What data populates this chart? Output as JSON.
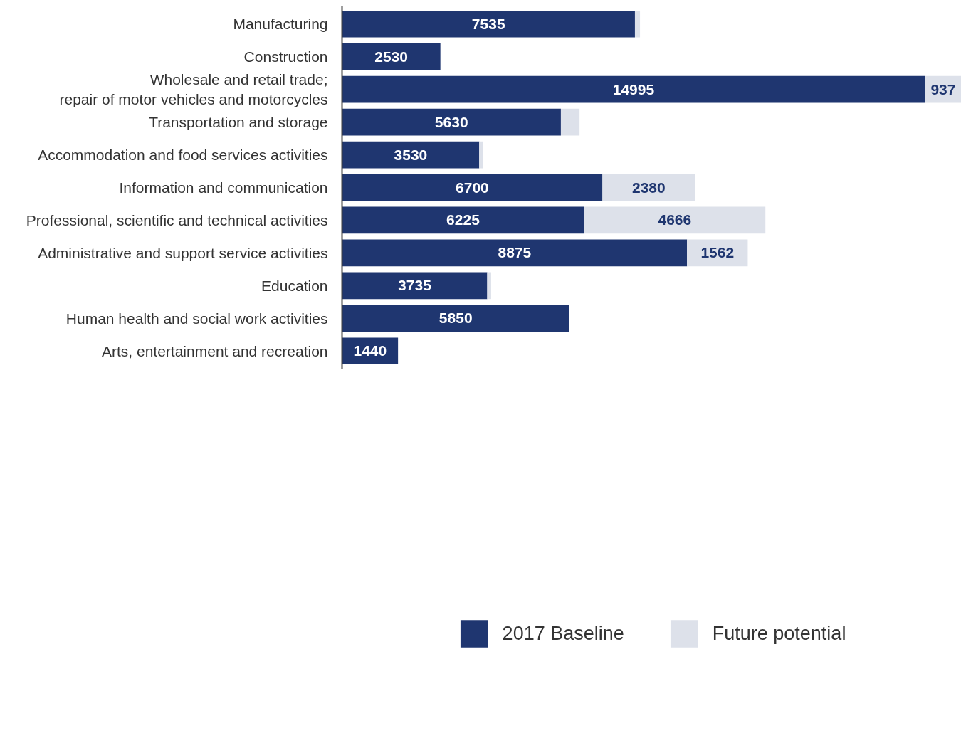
{
  "chart_data": {
    "type": "bar",
    "orientation": "horizontal",
    "stacked": true,
    "legend": "bottom",
    "grid": false,
    "tick_labels": "y",
    "categories": [
      "Manufacturing",
      "Construction",
      "Wholesale and retail trade;\nrepair of motor vehicles and motorcycles",
      "Transportation and storage",
      "Accommodation and food services activities",
      "Information and communication",
      "Professional, scientific and technical activities",
      "Administrative and support service activities",
      "Education",
      "Human health and social work activities",
      "Arts, entertainment and recreation"
    ],
    "series": [
      {
        "name": "2017 Baseline",
        "color": "#1f3670",
        "values": [
          7535,
          2530,
          14995,
          5630,
          3530,
          6700,
          6225,
          8875,
          3735,
          5850,
          1440
        ],
        "value_labels": [
          "7535",
          "2530",
          "14995",
          "5630",
          "3530",
          "6700",
          "6225",
          "8875",
          "3735",
          "5850",
          "1440"
        ]
      },
      {
        "name": "Future potential",
        "color": "#dde1ea",
        "values": [
          130,
          0,
          937,
          480,
          90,
          2380,
          4666,
          1562,
          100,
          0,
          0
        ],
        "value_labels": [
          null,
          null,
          "937",
          null,
          null,
          "2380",
          "4666",
          "1562",
          null,
          null,
          null
        ]
      }
    ]
  }
}
